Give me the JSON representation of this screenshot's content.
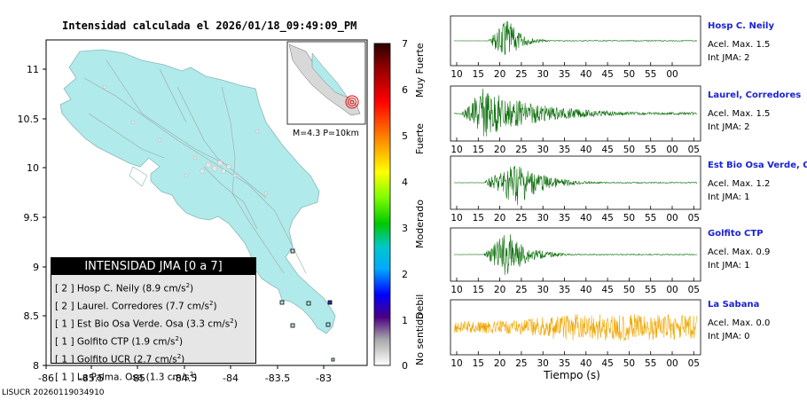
{
  "title": "Intensidad calculada el 2026/01/18_09:49:09_PM",
  "footer_id": "LISUCR 20260119034910",
  "map": {
    "x_ticks": [
      "-86",
      "-85.5",
      "-85",
      "-84.5",
      "-84",
      "-83.5",
      "-83"
    ],
    "y_ticks": [
      "11",
      "10.5",
      "10",
      "9.5",
      "9",
      "8.5",
      "8"
    ],
    "land_color": "#b1eaea",
    "water_color": "#ffffff",
    "inset_label": "M=4.3 P=10km"
  },
  "color_scale": {
    "ticks": [
      "7",
      "6",
      "5",
      "4",
      "3",
      "2",
      "1",
      "0"
    ],
    "labels": [
      "Muy Fuerte",
      "Fuerte",
      "Moderado",
      "Debil",
      "No sentido"
    ],
    "colors": [
      "#2a0000",
      "#8b0000",
      "#ff0000",
      "#ff8c00",
      "#ffff00",
      "#7cfc00",
      "#00c800",
      "#00c8c8",
      "#00aaff",
      "#0000ff",
      "#4b0082",
      "#a9a9a9",
      "#ffffff"
    ]
  },
  "station_list": {
    "title": "INTENSIDAD JMA [0 a 7]",
    "items": [
      {
        "int": "[ 2 ]",
        "name": "Hosp C. Neily",
        "val": "(8.9 cm/s",
        "unit_sup": "2",
        "close": ")"
      },
      {
        "int": "[ 2 ]",
        "name": "Laurel. Corredores",
        "val": "(7.7 cm/s",
        "unit_sup": "2",
        "close": ")"
      },
      {
        "int": "[ 1 ]",
        "name": "Est Bio Osa Verde. Osa",
        "val": "(3.3 cm/s",
        "unit_sup": "2",
        "close": ")"
      },
      {
        "int": "[ 1 ]",
        "name": "Golfito CTP",
        "val": "(1.9 cm/s",
        "unit_sup": "2",
        "close": ")"
      },
      {
        "int": "[ 1 ]",
        "name": "Golfito UCR",
        "val": "(2.7 cm/s",
        "unit_sup": "2",
        "close": ")"
      },
      {
        "int": "[ 1 ]",
        "name": "La Palma. Osa",
        "val": "(1.3 cm/s",
        "unit_sup": "2",
        "close": ")"
      }
    ]
  },
  "traces": [
    {
      "name": "Hosp C. Neily",
      "acel": "Acel. Max. 1.5",
      "int": "Int JMA: 2",
      "color": "#0a6e0a",
      "x_ticks": [
        "10",
        "15",
        "20",
        "25",
        "30",
        "35",
        "40",
        "45",
        "50",
        "55",
        "00"
      ],
      "onset": 0.14,
      "peak": 0.22,
      "decay": 0.05,
      "noise": 0.02,
      "amp": 1.0
    },
    {
      "name": "Laurel, Corredores",
      "acel": "Acel. Max. 1.5",
      "int": "Int JMA: 2",
      "color": "#0a6e0a",
      "x_ticks": [
        "10",
        "15",
        "20",
        "25",
        "30",
        "35",
        "40",
        "45",
        "50",
        "55",
        "00",
        "05"
      ],
      "onset": 0.03,
      "peak": 0.12,
      "decay": 0.22,
      "noise": 0.05,
      "amp": 1.0
    },
    {
      "name": "Est Bio Osa Verde, Osa",
      "acel": "Acel. Max. 1.2",
      "int": "Int JMA: 1",
      "color": "#0a6e0a",
      "x_ticks": [
        "10",
        "15",
        "20",
        "25",
        "30",
        "35",
        "40",
        "45",
        "50",
        "55",
        "00",
        "05"
      ],
      "onset": 0.12,
      "peak": 0.26,
      "decay": 0.1,
      "noise": 0.02,
      "amp": 0.95
    },
    {
      "name": "Golfito CTP",
      "acel": "Acel. Max. 0.9",
      "int": "Int JMA: 1",
      "color": "#0a6e0a",
      "x_ticks": [
        "10",
        "15",
        "20",
        "25",
        "30",
        "35",
        "40",
        "45",
        "50",
        "55",
        "00",
        "05"
      ],
      "onset": 0.12,
      "peak": 0.22,
      "decay": 0.08,
      "noise": 0.02,
      "amp": 0.95
    },
    {
      "name": "La Sabana",
      "acel": "Acel. Max. 0.0",
      "int": "Int JMA: 0",
      "color": "#f0a500",
      "x_ticks": [
        "10",
        "15",
        "20",
        "25",
        "30",
        "35",
        "40",
        "45",
        "50",
        "55",
        "00",
        "05"
      ],
      "onset": 0.0,
      "peak": 0.5,
      "decay": 5.0,
      "noise": 0.45,
      "amp": 0.55
    }
  ],
  "xaxis_label": "Tiempo (s)"
}
